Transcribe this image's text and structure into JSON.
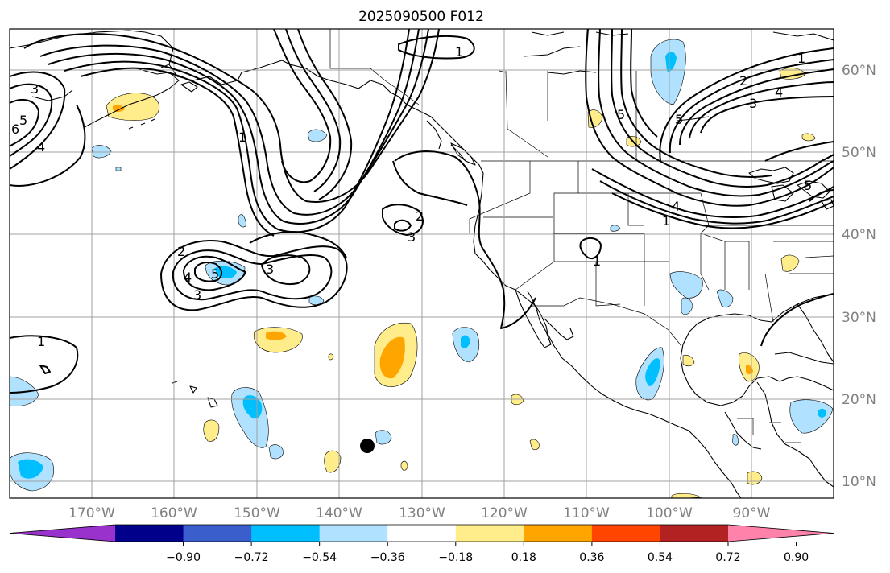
{
  "title": "2025090500 F012",
  "lon_labels": [
    "170°W",
    "160°W",
    "150°W",
    "140°W",
    "130°W",
    "120°W",
    "110°W",
    "100°W",
    "90°W"
  ],
  "lat_labels": [
    "60°N",
    "50°N",
    "40°N",
    "30°N",
    "20°N",
    "10°N"
  ],
  "colorbar": {
    "colors": [
      "#9932cc",
      "#00008b",
      "#3a5fcd",
      "#00bfff",
      "#b0e2ff",
      "#ffffff",
      "#ffec8b",
      "#ffa500",
      "#ff4500",
      "#b22222",
      "#ff82ab"
    ],
    "tick_labels": [
      "−0.90",
      "−0.72",
      "−0.54",
      "−0.36",
      "−0.18",
      "0.18",
      "0.36",
      "0.54",
      "0.72",
      "0.90"
    ]
  },
  "contour_labels": [
    "1",
    "2",
    "3",
    "4",
    "5",
    "6"
  ]
}
